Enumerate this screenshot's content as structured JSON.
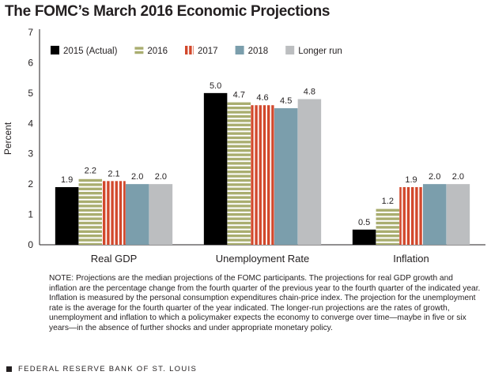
{
  "title": "The FOMC’s March 2016 Economic Projections",
  "chart_data": {
    "type": "bar",
    "title": "The FOMC’s March 2016 Economic Projections",
    "ylabel": "Percent",
    "xlabel": "",
    "ylim": [
      0,
      7
    ],
    "yticks": [
      "0",
      "1",
      "2",
      "3",
      "4",
      "5",
      "6",
      "7"
    ],
    "categories": [
      "Real GDP",
      "Unemployment Rate",
      "Inflation"
    ],
    "grid": false,
    "legend_position": "top",
    "series": [
      {
        "name": "2015 (Actual)",
        "values": [
          1.9,
          5.0,
          0.5
        ],
        "labels": [
          "1.9",
          "5.0",
          "0.5"
        ],
        "color": "#000000",
        "pattern": "solid"
      },
      {
        "name": "2016",
        "values": [
          2.2,
          4.7,
          1.2
        ],
        "labels": [
          "2.2",
          "4.7",
          "1.2"
        ],
        "color": "#a9ad6f",
        "pattern": "horizontal-stripes"
      },
      {
        "name": "2017",
        "values": [
          2.1,
          4.6,
          1.9
        ],
        "labels": [
          "2.1",
          "4.6",
          "1.9"
        ],
        "color": "#d2482c",
        "pattern": "vertical-stripes"
      },
      {
        "name": "2018",
        "values": [
          2.0,
          4.5,
          2.0
        ],
        "labels": [
          "2.0",
          "4.5",
          "2.0"
        ],
        "color": "#7b9eac",
        "pattern": "solid"
      },
      {
        "name": "Longer run",
        "values": [
          2.0,
          4.8,
          2.0
        ],
        "labels": [
          "2.0",
          "4.8",
          "2.0"
        ],
        "color": "#bcbec0",
        "pattern": "solid"
      }
    ]
  },
  "note": "NOTE: Projections are the median projections of the FOMC participants. The projections for real GDP growth and inflation are the percentage change from the fourth quarter of the previous year to the fourth quarter of the indicated year. Inflation is measured by the personal consumption expenditures chain-price index. The projection for the unemployment rate is the average for the fourth quarter of the year indicated. The longer-run projections are the rates of growth, unemployment and inflation to which a policymaker expects the economy to converge over time—maybe in five or six years—in the absence of further shocks and under appropriate monetary policy.",
  "footer": "FEDERAL RESERVE BANK OF ST. LOUIS"
}
